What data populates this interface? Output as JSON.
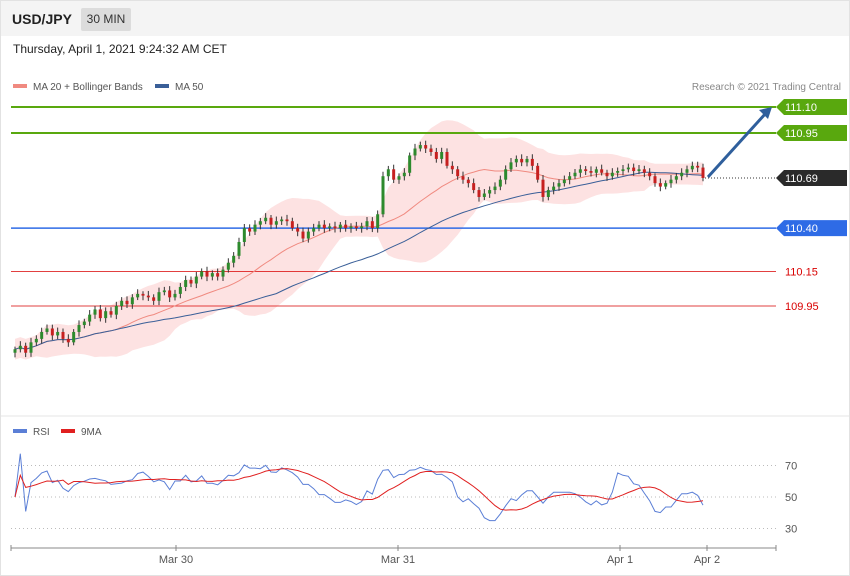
{
  "header": {
    "symbol": "USD/JPY",
    "timeframe": "30 MIN",
    "datetime": "Thursday, April 1, 2021 9:24:32 AM CET"
  },
  "legend": {
    "ma20": "MA 20 + Bollinger Bands",
    "ma50": "MA 50",
    "credit": "Research © 2021 Trading Central"
  },
  "rsi_legend": {
    "rsi": "RSI",
    "ma9": "9MA"
  },
  "colors": {
    "green": "#59a80e",
    "blue": "#2e6be6",
    "red": "#d90000",
    "candle_up": "#2d8a2d",
    "candle_down": "#c62020",
    "ma20": "#f08a80",
    "ma50": "#3a5f98",
    "band": "#fde2e2",
    "rsi": "#5b7fd6",
    "rsi_ma": "#e02020"
  },
  "chart_data": [
    {
      "type": "candlestick",
      "title": "USD/JPY",
      "x_labels": [
        "Mar 30",
        "Mar 31",
        "Apr 1",
        "Apr 2"
      ],
      "ylim": [
        109.58,
        111.16
      ],
      "levels": [
        {
          "label": "111.10",
          "value": 111.1,
          "color": "#59a80e",
          "kind": "resistance"
        },
        {
          "label": "110.95",
          "value": 110.95,
          "color": "#59a80e",
          "kind": "resistance"
        },
        {
          "label": "110.69",
          "value": 110.69,
          "color": "#2a2a2a",
          "kind": "last"
        },
        {
          "label": "110.40",
          "value": 110.4,
          "color": "#2e6be6",
          "kind": "pivot"
        },
        {
          "label": "110.15",
          "value": 110.15,
          "color": "#d90000",
          "kind": "support"
        },
        {
          "label": "109.95",
          "value": 109.95,
          "color": "#d90000",
          "kind": "support"
        }
      ],
      "arrow": {
        "from": 110.69,
        "to": 111.1
      },
      "close": [
        109.7,
        109.72,
        109.68,
        109.74,
        109.76,
        109.8,
        109.82,
        109.78,
        109.8,
        109.76,
        109.74,
        109.8,
        109.84,
        109.86,
        109.9,
        109.93,
        109.88,
        109.92,
        109.9,
        109.95,
        109.98,
        109.96,
        110.0,
        110.02,
        110.01,
        110.0,
        109.98,
        110.03,
        110.04,
        110.0,
        110.02,
        110.06,
        110.1,
        110.08,
        110.12,
        110.15,
        110.12,
        110.14,
        110.12,
        110.16,
        110.2,
        110.24,
        110.32,
        110.4,
        110.38,
        110.42,
        110.44,
        110.46,
        110.42,
        110.44,
        110.45,
        110.44,
        110.4,
        110.38,
        110.34,
        110.38,
        110.4,
        110.42,
        110.4,
        110.41,
        110.4,
        110.42,
        110.4,
        110.41,
        110.4,
        110.41,
        110.44,
        110.4,
        110.48,
        110.7,
        110.74,
        110.68,
        110.7,
        110.72,
        110.82,
        110.86,
        110.88,
        110.86,
        110.84,
        110.8,
        110.84,
        110.76,
        110.74,
        110.7,
        110.68,
        110.66,
        110.62,
        110.58,
        110.6,
        110.62,
        110.64,
        110.68,
        110.74,
        110.78,
        110.8,
        110.78,
        110.8,
        110.76,
        110.68,
        110.58,
        110.62,
        110.64,
        110.66,
        110.68,
        110.7,
        110.72,
        110.74,
        110.73,
        110.72,
        110.74,
        110.72,
        110.7,
        110.72,
        110.73,
        110.74,
        110.75,
        110.73,
        110.74,
        110.72,
        110.7,
        110.66,
        110.64,
        110.66,
        110.68,
        110.7,
        110.72,
        110.74,
        110.76,
        110.75,
        110.69
      ]
    },
    {
      "type": "line",
      "title": "RSI",
      "series": [
        {
          "name": "RSI"
        },
        {
          "name": "9MA"
        }
      ],
      "ylim": [
        20,
        80
      ],
      "yticks": [
        70,
        50,
        30
      ]
    }
  ]
}
